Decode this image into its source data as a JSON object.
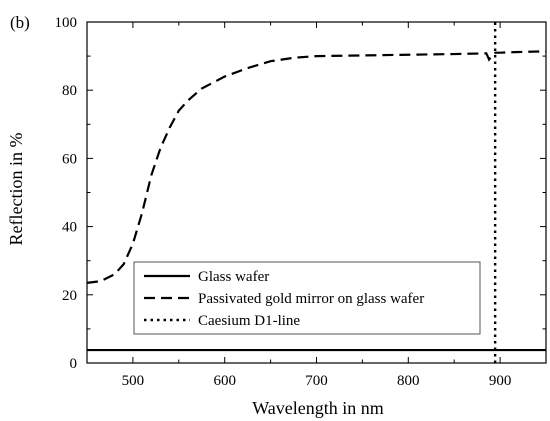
{
  "panel_label": "(b)",
  "chart_data": {
    "type": "line",
    "title": "",
    "xlabel": "Wavelength in nm",
    "ylabel": "Reflection in %",
    "xlim": [
      450,
      950
    ],
    "ylim": [
      0,
      100
    ],
    "x_ticks": [
      500,
      600,
      700,
      800,
      900
    ],
    "y_ticks": [
      0,
      20,
      40,
      60,
      80,
      100
    ],
    "grid": false,
    "legend_position": "bottom-center",
    "series": [
      {
        "name": "Glass wafer",
        "style": "solid",
        "color": "#000000",
        "x": [
          450,
          500,
          550,
          600,
          650,
          700,
          750,
          800,
          850,
          900,
          950
        ],
        "y": [
          3.8,
          3.8,
          3.8,
          3.8,
          3.8,
          3.8,
          3.8,
          3.8,
          3.8,
          3.8,
          3.8
        ]
      },
      {
        "name": "Passivated gold mirror on glass wafer",
        "style": "dashed",
        "color": "#000000",
        "x": [
          450,
          465,
          480,
          490,
          500,
          510,
          520,
          530,
          540,
          550,
          560,
          575,
          600,
          625,
          650,
          675,
          700,
          750,
          800,
          850,
          885,
          888,
          892,
          895,
          900,
          920,
          950
        ],
        "y": [
          23.5,
          24,
          26,
          29,
          35,
          44,
          55,
          63,
          69,
          74,
          77,
          80.5,
          84,
          86.5,
          88.5,
          89.5,
          90,
          90.2,
          90.4,
          90.6,
          90.8,
          89,
          90.5,
          91,
          91,
          91.2,
          91.4
        ]
      },
      {
        "name": "Caesium D1-line",
        "style": "dotted",
        "color": "#000000",
        "x": [
          894.6,
          894.6
        ],
        "y": [
          0,
          100
        ]
      }
    ]
  }
}
